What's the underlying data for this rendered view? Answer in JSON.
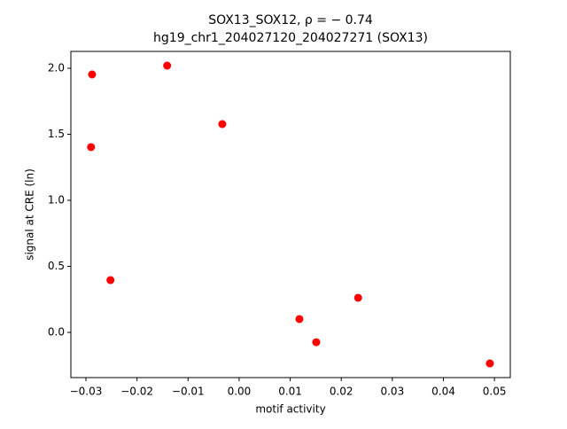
{
  "chart_data": {
    "type": "scatter",
    "title": "SOX13_SOX12, ρ = − 0.74",
    "subtitle": "hg19_chr1_204027120_204027271 (SOX13)",
    "x_label": "motif activity",
    "y_label": "signal at CRE (ln)",
    "color": "#ff0000",
    "x": [
      -0.0288,
      -0.029,
      -0.0252,
      -0.0141,
      -0.0033,
      0.0118,
      0.0151,
      0.0233,
      0.0491
    ],
    "values": [
      1.953,
      1.403,
      0.396,
      2.02,
      1.577,
      0.101,
      -0.074,
      0.262,
      -0.235
    ],
    "xlim": [
      -0.03295,
      0.0531
    ],
    "ylim": [
      -0.342,
      2.1275
    ],
    "xticks": [
      {
        "value": -0.03,
        "label": "−0.03"
      },
      {
        "value": -0.02,
        "label": "−0.02"
      },
      {
        "value": -0.01,
        "label": "−0.01"
      },
      {
        "value": 0,
        "label": "0.00"
      },
      0.01,
      0.02,
      0.03,
      0.04,
      0.05
    ],
    "yticks": [
      {
        "value": 0,
        "label": "0.0"
      },
      0.5,
      {
        "value": 1,
        "label": "1.0"
      },
      1.5,
      {
        "value": 2,
        "label": "2.0"
      }
    ]
  }
}
